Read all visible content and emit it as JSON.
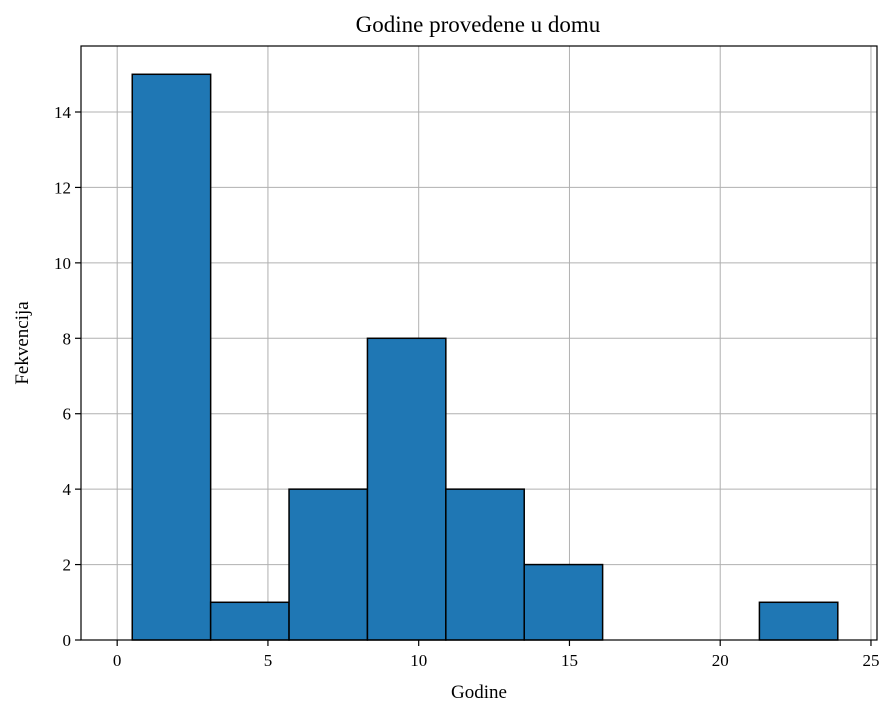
{
  "chart_data": {
    "type": "bar",
    "title": "Godine provedene u domu",
    "xlabel": "Godine",
    "ylabel": "Fekvencija",
    "xlim": [
      -1.2,
      25.2
    ],
    "ylim": [
      0,
      15.75
    ],
    "xticks": [
      0,
      5,
      10,
      15,
      20,
      25
    ],
    "yticks": [
      0,
      2,
      4,
      6,
      8,
      10,
      12,
      14
    ],
    "grid": true,
    "bar_color": "#1f77b4",
    "edge_color": "#000000",
    "bins": [
      {
        "x0": 0.5,
        "x1": 3.1,
        "value": 15
      },
      {
        "x0": 3.1,
        "x1": 5.7,
        "value": 1
      },
      {
        "x0": 5.7,
        "x1": 8.3,
        "value": 4
      },
      {
        "x0": 8.3,
        "x1": 10.9,
        "value": 8
      },
      {
        "x0": 10.9,
        "x1": 13.5,
        "value": 4
      },
      {
        "x0": 13.5,
        "x1": 16.1,
        "value": 2
      },
      {
        "x0": 16.1,
        "x1": 18.7,
        "value": 0
      },
      {
        "x0": 18.7,
        "x1": 21.3,
        "value": 0
      },
      {
        "x0": 21.3,
        "x1": 23.9,
        "value": 1
      }
    ]
  }
}
